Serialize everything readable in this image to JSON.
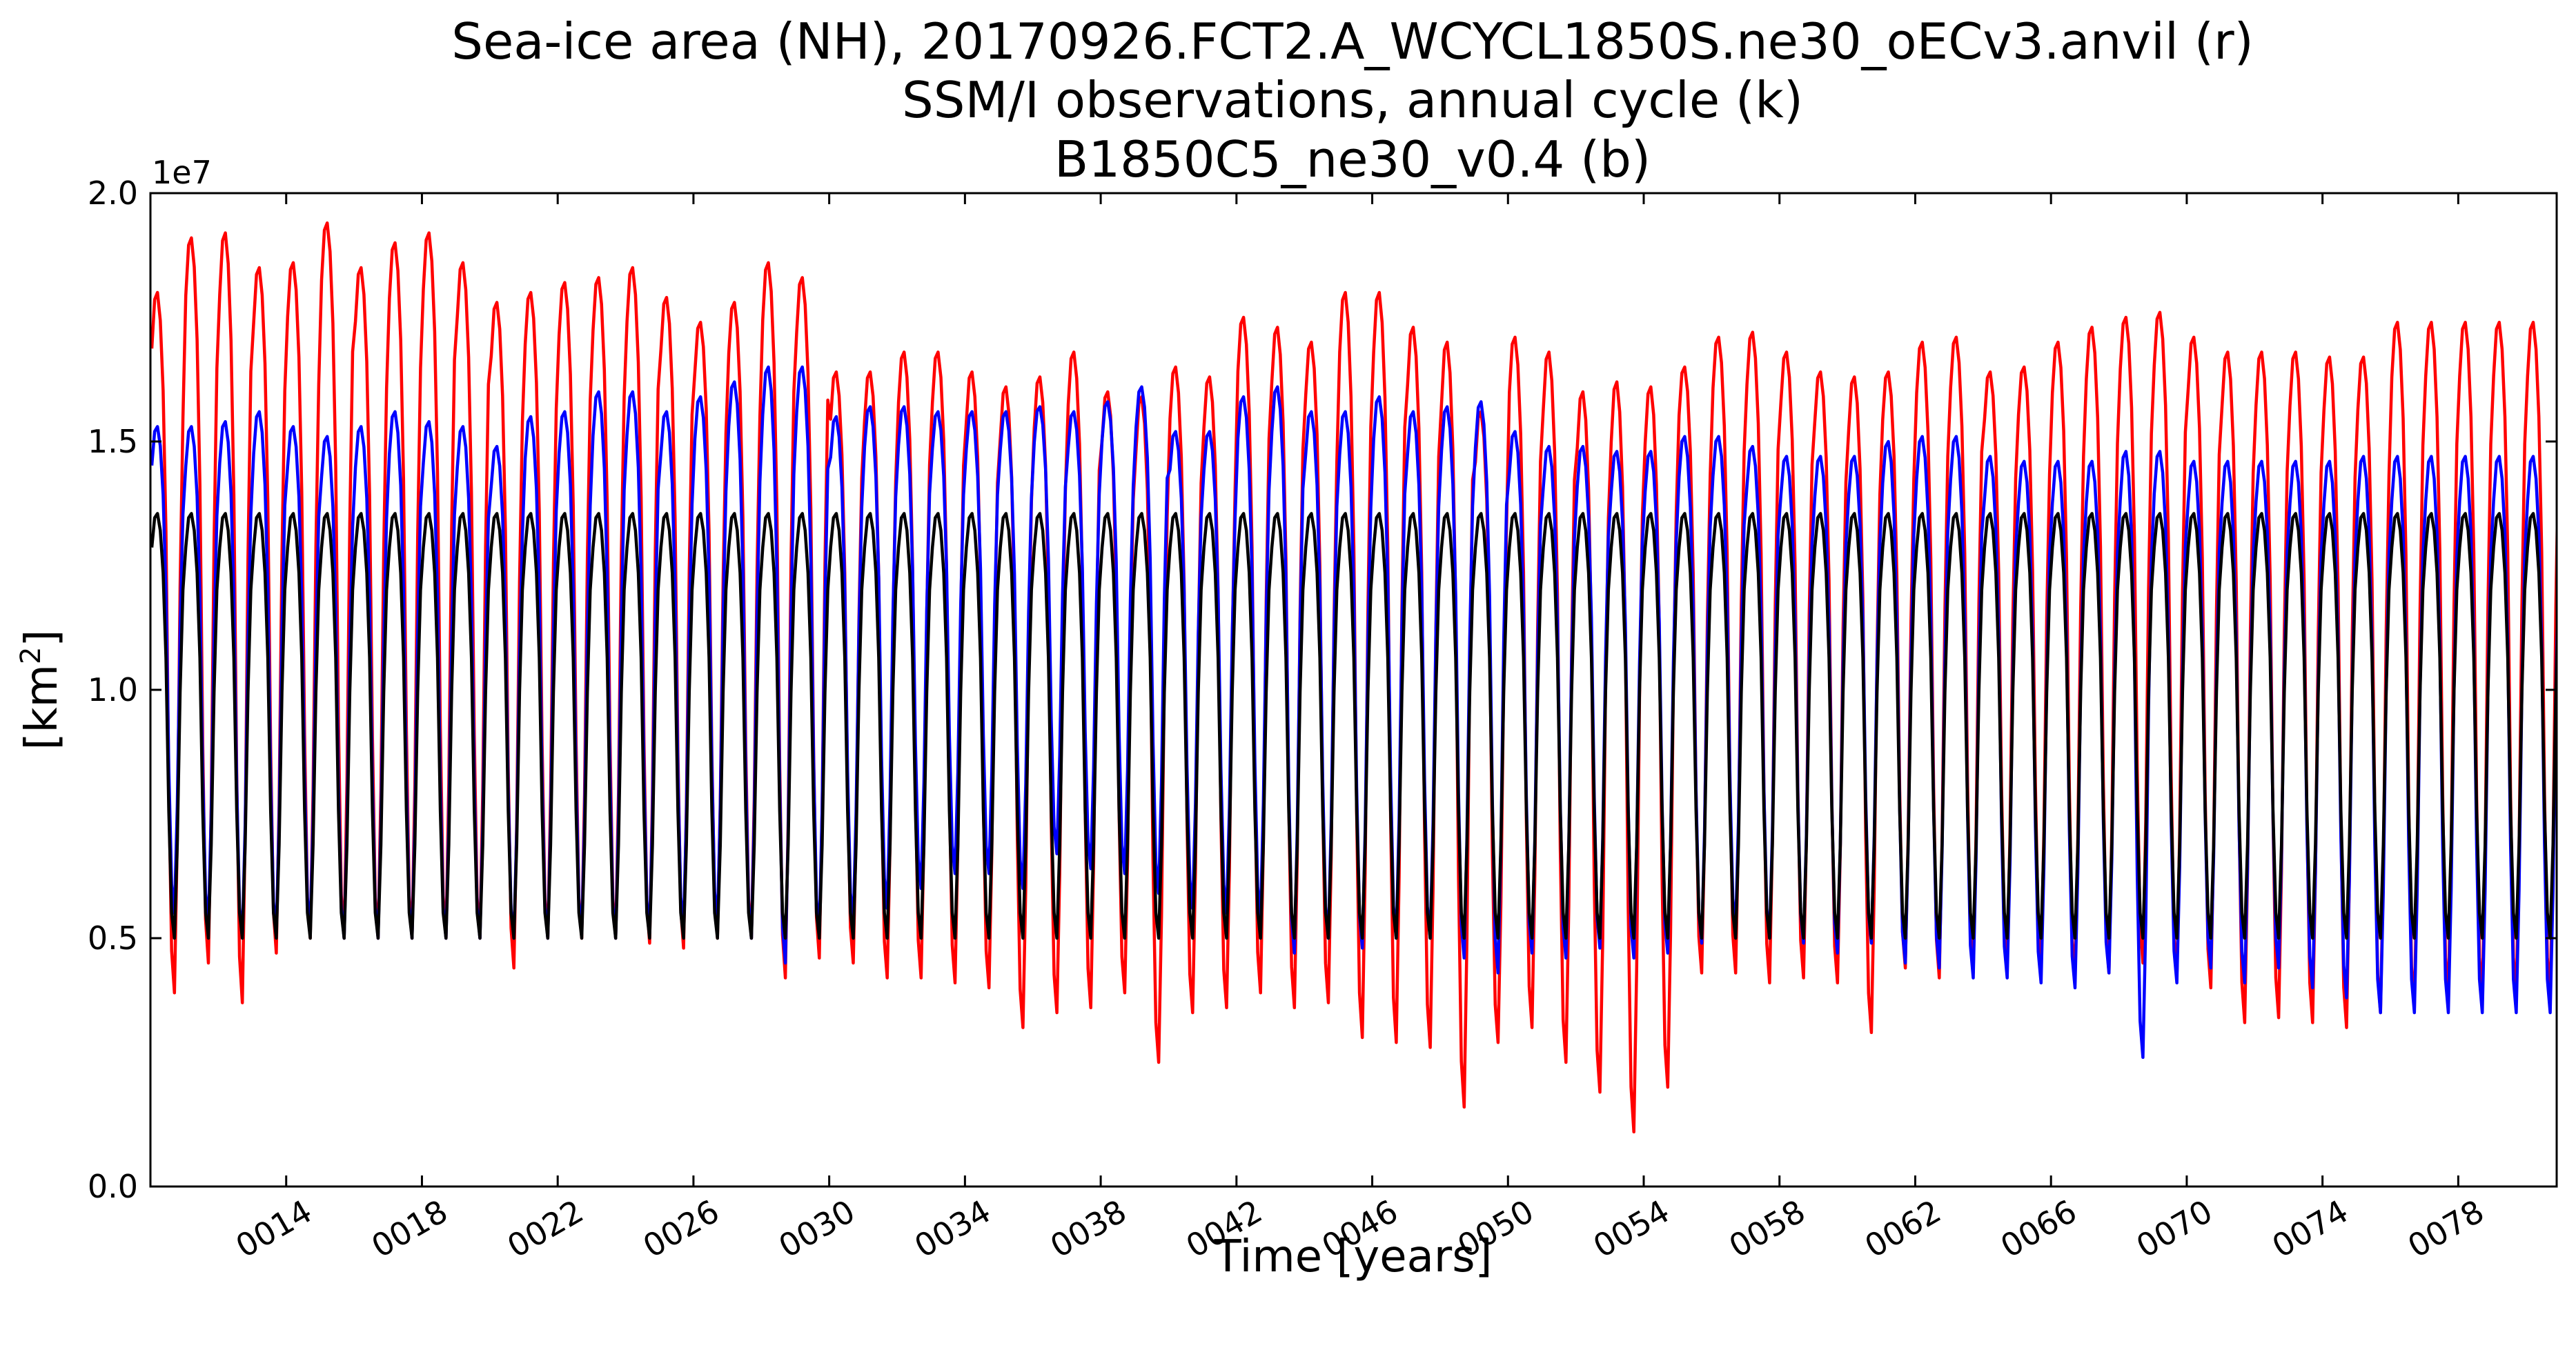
{
  "chart_data": {
    "type": "line",
    "title_lines": [
      "Sea-ice area (NH), 20170926.FCT2.A_WCYCL1850S.ne30_oECv3.anvil (r)",
      "SSM/I observations, annual cycle (k)",
      "B1850C5_ne30_v0.4 (b)"
    ],
    "xlabel": "Time [years]",
    "ylabel_base": "[km",
    "ylabel_sup": "2",
    "ylabel_end": "]",
    "y_offset_label": "1e7",
    "xlim": [
      10,
      80.9
    ],
    "ylim": [
      0,
      20000000
    ],
    "x_ticks": [
      14,
      18,
      22,
      26,
      30,
      34,
      38,
      42,
      46,
      50,
      54,
      58,
      62,
      66,
      70,
      74,
      78
    ],
    "x_tick_labels": [
      "0014",
      "0018",
      "0022",
      "0026",
      "0030",
      "0034",
      "0038",
      "0042",
      "0046",
      "0050",
      "0054",
      "0058",
      "0062",
      "0066",
      "0070",
      "0074",
      "0078"
    ],
    "y_ticks": [
      0,
      5000000,
      10000000,
      15000000,
      20000000
    ],
    "y_tick_labels": [
      "0.0",
      "0.5",
      "1.0",
      "1.5",
      "2.0"
    ],
    "grid": false,
    "legend": "none",
    "series": [
      {
        "color": "#ff0000",
        "first_year": 10,
        "annual_max": [
          18.0,
          19.1,
          19.2,
          18.5,
          18.6,
          19.4,
          18.5,
          19.0,
          19.2,
          18.6,
          17.8,
          18.0,
          18.2,
          18.3,
          18.5,
          17.9,
          17.4,
          17.8,
          18.6,
          18.3,
          16.4,
          16.4,
          16.8,
          16.8,
          16.4,
          16.1,
          16.3,
          16.8,
          16.0,
          15.9,
          16.5,
          16.3,
          17.5,
          17.3,
          17.0,
          18.0,
          18.0,
          17.3,
          17.0,
          15.6,
          17.1,
          16.8,
          16.0,
          16.2,
          16.1,
          16.5,
          17.1,
          17.2,
          16.8,
          16.4,
          16.3,
          16.4,
          17.0,
          17.1,
          16.4,
          16.5,
          17.0,
          17.3,
          17.5,
          17.6,
          17.1,
          16.8,
          16.8,
          16.8,
          16.7,
          16.7,
          17.4,
          17.4,
          17.4,
          17.4,
          17.4
        ],
        "annual_min": [
          3.9,
          4.5,
          3.7,
          4.7,
          5.0,
          5.0,
          5.0,
          5.0,
          5.0,
          5.0,
          4.4,
          5.0,
          5.0,
          5.0,
          4.9,
          4.8,
          5.0,
          5.0,
          4.2,
          4.6,
          4.5,
          4.2,
          4.2,
          4.1,
          4.0,
          3.2,
          3.5,
          3.6,
          3.9,
          2.5,
          3.5,
          3.6,
          3.9,
          3.6,
          3.7,
          3.0,
          2.9,
          2.8,
          1.6,
          2.9,
          3.2,
          2.5,
          1.9,
          1.1,
          2.0,
          4.3,
          4.3,
          4.1,
          4.2,
          4.1,
          3.1,
          4.4,
          4.2,
          4.3,
          4.5,
          4.5,
          4.2,
          4.3,
          4.5,
          4.2,
          4.0,
          3.3,
          3.4,
          3.3,
          3.2,
          3.5,
          3.6,
          3.8,
          3.8,
          3.8,
          3.8
        ]
      },
      {
        "color": "#0000ff",
        "first_year": 10,
        "annual_max": [
          15.3,
          15.3,
          15.4,
          15.6,
          15.3,
          15.1,
          15.3,
          15.6,
          15.4,
          15.3,
          14.9,
          15.5,
          15.6,
          16.0,
          16.0,
          15.6,
          15.9,
          16.2,
          16.5,
          16.5,
          15.5,
          15.7,
          15.7,
          15.6,
          15.6,
          15.6,
          15.7,
          15.6,
          15.8,
          16.1,
          15.2,
          15.2,
          15.9,
          16.1,
          15.6,
          15.6,
          15.9,
          15.6,
          15.7,
          15.8,
          15.2,
          14.9,
          14.9,
          14.8,
          14.8,
          15.1,
          15.1,
          14.9,
          14.7,
          14.7,
          14.7,
          15.0,
          15.1,
          15.1,
          14.7,
          14.6,
          14.6,
          14.6,
          14.8,
          14.8,
          14.6,
          14.6,
          14.6,
          14.6,
          14.6,
          14.7,
          14.7,
          14.7,
          14.7,
          14.7,
          14.7
        ],
        "annual_min": [
          5.5,
          5.3,
          5.0,
          5.1,
          5.2,
          5.0,
          5.0,
          5.0,
          5.0,
          5.0,
          5.0,
          5.0,
          5.1,
          5.0,
          5.1,
          5.2,
          5.3,
          5.0,
          4.5,
          5.1,
          5.3,
          5.6,
          6.0,
          6.3,
          6.3,
          6.0,
          6.7,
          6.4,
          6.3,
          5.9,
          5.6,
          5.5,
          5.4,
          4.7,
          5.0,
          4.8,
          5.0,
          5.0,
          4.6,
          4.3,
          4.7,
          4.6,
          4.8,
          4.6,
          4.7,
          4.9,
          5.2,
          5.0,
          4.9,
          4.7,
          4.9,
          4.5,
          4.4,
          4.2,
          4.2,
          4.1,
          4.0,
          4.3,
          2.6,
          4.1,
          4.4,
          4.1,
          4.4,
          4.0,
          3.8,
          3.5,
          3.5,
          3.5,
          3.5,
          3.5,
          3.5
        ]
      },
      {
        "color": "#000000",
        "first_year": 10,
        "cycle_max": 13.55,
        "cycle_min": 5.0
      }
    ]
  }
}
